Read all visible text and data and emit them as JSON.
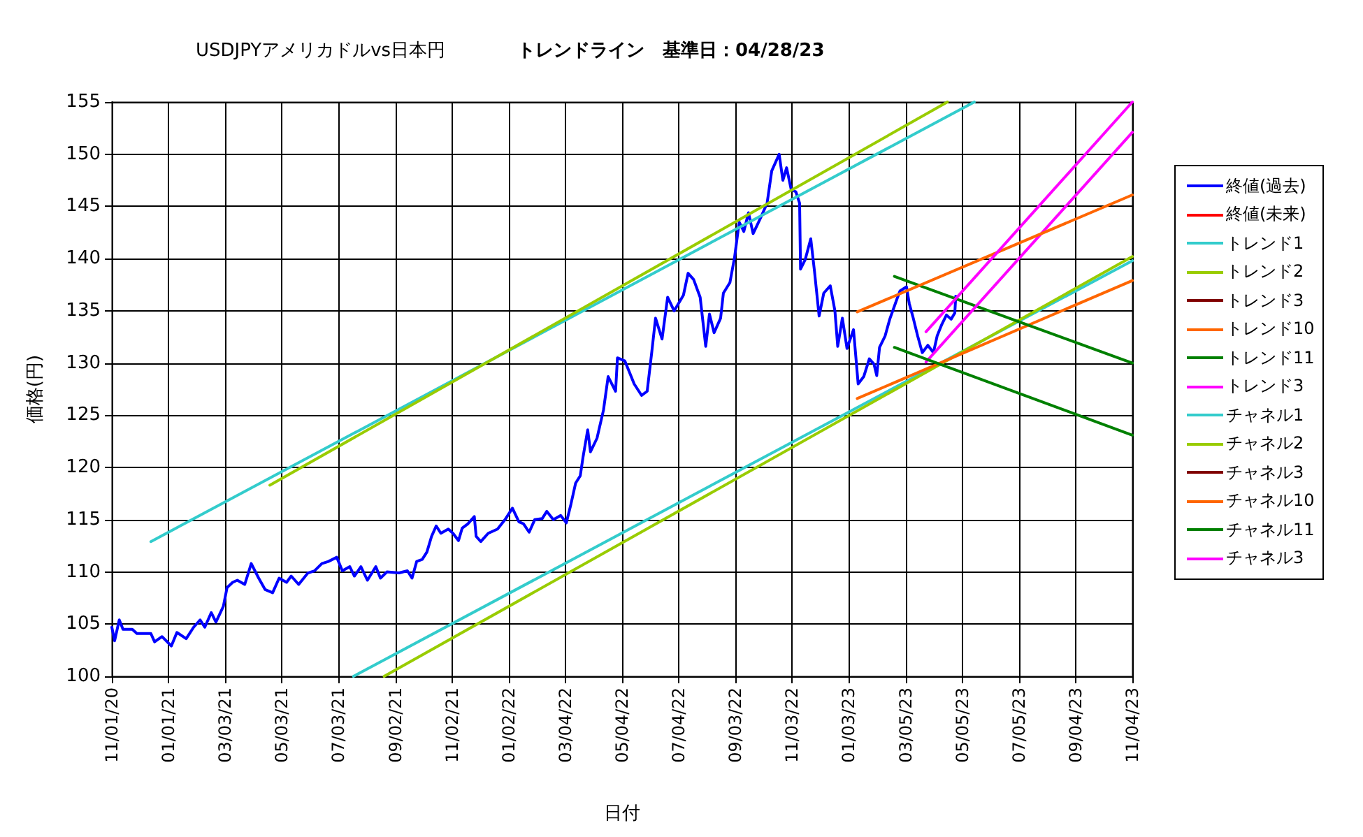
{
  "chart_data": {
    "type": "line",
    "title": "USDJPYアメリカドルvs日本円",
    "subtitle": "トレンドライン　基準日：04/28/23",
    "xlabel": "日付",
    "ylabel": "価格(円)",
    "xlim": [
      "2020-11-01",
      "2023-11-04"
    ],
    "xticks": [
      {
        "value": "2020-11-01",
        "label": "11/01/20"
      },
      {
        "value": "2021-01-01",
        "label": "01/01/21"
      },
      {
        "value": "2021-03-03",
        "label": "03/03/21"
      },
      {
        "value": "2021-05-03",
        "label": "05/03/21"
      },
      {
        "value": "2021-07-03",
        "label": "07/03/21"
      },
      {
        "value": "2021-09-02",
        "label": "09/02/21"
      },
      {
        "value": "2021-11-02",
        "label": "11/02/21"
      },
      {
        "value": "2022-01-02",
        "label": "01/02/22"
      },
      {
        "value": "2022-03-04",
        "label": "03/04/22"
      },
      {
        "value": "2022-05-04",
        "label": "05/04/22"
      },
      {
        "value": "2022-07-04",
        "label": "07/04/22"
      },
      {
        "value": "2022-09-03",
        "label": "09/03/22"
      },
      {
        "value": "2022-11-03",
        "label": "11/03/22"
      },
      {
        "value": "2023-01-03",
        "label": "01/03/23"
      },
      {
        "value": "2023-03-05",
        "label": "03/05/23"
      },
      {
        "value": "2023-05-05",
        "label": "05/05/23"
      },
      {
        "value": "2023-07-05",
        "label": "07/05/23"
      },
      {
        "value": "2023-09-04",
        "label": "09/04/23"
      },
      {
        "value": "2023-11-04",
        "label": "11/04/23"
      }
    ],
    "ylim": [
      100,
      155
    ],
    "yticks": [
      100,
      105,
      110,
      115,
      120,
      125,
      130,
      135,
      140,
      145,
      150,
      155
    ],
    "grid": true,
    "legend": "right",
    "marker": "none",
    "line_style": "solid",
    "series": [
      {
        "name": "終値(過去)",
        "color": "#0000ff",
        "x": [
          "2020-11-01",
          "2020-11-04",
          "2020-11-09",
          "2020-11-13",
          "2020-11-23",
          "2020-11-28",
          "2020-12-13",
          "2020-12-17",
          "2020-12-25",
          "2021-01-04",
          "2021-01-10",
          "2021-01-20",
          "2021-01-28",
          "2021-02-04",
          "2021-02-09",
          "2021-02-16",
          "2021-02-21",
          "2021-03-01",
          "2021-03-05",
          "2021-03-11",
          "2021-03-16",
          "2021-03-24",
          "2021-03-31",
          "2021-04-08",
          "2021-04-15",
          "2021-04-23",
          "2021-04-30",
          "2021-05-08",
          "2021-05-13",
          "2021-05-21",
          "2021-05-31",
          "2021-06-07",
          "2021-06-15",
          "2021-06-22",
          "2021-07-01",
          "2021-07-07",
          "2021-07-15",
          "2021-07-20",
          "2021-07-27",
          "2021-08-03",
          "2021-08-12",
          "2021-08-17",
          "2021-08-24",
          "2021-09-06",
          "2021-09-15",
          "2021-09-20",
          "2021-09-25",
          "2021-10-01",
          "2021-10-06",
          "2021-10-11",
          "2021-10-16",
          "2021-10-21",
          "2021-10-29",
          "2021-11-03",
          "2021-11-09",
          "2021-11-13",
          "2021-11-19",
          "2021-11-26",
          "2021-11-28",
          "2021-12-03",
          "2021-12-11",
          "2021-12-21",
          "2021-12-29",
          "2022-01-06",
          "2022-01-13",
          "2022-01-18",
          "2022-01-24",
          "2022-01-30",
          "2022-02-07",
          "2022-02-12",
          "2022-02-19",
          "2022-02-27",
          "2022-03-05",
          "2022-03-10",
          "2022-03-15",
          "2022-03-20",
          "2022-03-23",
          "2022-03-28",
          "2022-03-31",
          "2022-04-07",
          "2022-04-14",
          "2022-04-19",
          "2022-04-27",
          "2022-04-29",
          "2022-05-07",
          "2022-05-12",
          "2022-05-17",
          "2022-05-25",
          "2022-05-31",
          "2022-06-05",
          "2022-06-09",
          "2022-06-16",
          "2022-06-22",
          "2022-06-29",
          "2022-07-09",
          "2022-07-14",
          "2022-07-20",
          "2022-07-27",
          "2022-08-02",
          "2022-08-06",
          "2022-08-11",
          "2022-08-18",
          "2022-08-21",
          "2022-08-28",
          "2022-09-02",
          "2022-09-07",
          "2022-09-12",
          "2022-09-17",
          "2022-09-22",
          "2022-09-30",
          "2022-10-07",
          "2022-10-12",
          "2022-10-20",
          "2022-10-24",
          "2022-10-28",
          "2022-11-02",
          "2022-11-07",
          "2022-11-11",
          "2022-11-12",
          "2022-11-17",
          "2022-11-23",
          "2022-11-27",
          "2022-12-02",
          "2022-12-07",
          "2022-12-14",
          "2022-12-19",
          "2022-12-22",
          "2022-12-27",
          "2023-01-01",
          "2023-01-08",
          "2023-01-13",
          "2023-01-19",
          "2023-01-25",
          "2023-01-30",
          "2023-02-02",
          "2023-02-05",
          "2023-02-11",
          "2023-02-16",
          "2023-02-24",
          "2023-02-27",
          "2023-03-06",
          "2023-03-09",
          "2023-03-13",
          "2023-03-18",
          "2023-03-23",
          "2023-03-29",
          "2023-04-04",
          "2023-04-08",
          "2023-04-13",
          "2023-04-18",
          "2023-04-23",
          "2023-04-27",
          "2023-04-28"
        ],
        "values": [
          104.7,
          103.4,
          105.4,
          104.5,
          104.5,
          104.1,
          104.1,
          103.3,
          103.8,
          102.9,
          104.2,
          103.6,
          104.7,
          105.4,
          104.7,
          106.1,
          105.2,
          106.7,
          108.5,
          109.0,
          109.2,
          108.8,
          110.8,
          109.4,
          108.3,
          108.0,
          109.4,
          109.0,
          109.6,
          108.8,
          109.9,
          110.1,
          110.8,
          111.0,
          111.4,
          110.1,
          110.5,
          109.6,
          110.5,
          109.2,
          110.5,
          109.4,
          110.0,
          109.9,
          110.1,
          109.4,
          111.0,
          111.2,
          111.9,
          113.4,
          114.4,
          113.7,
          114.1,
          113.7,
          113.0,
          114.2,
          114.6,
          115.3,
          113.4,
          112.9,
          113.7,
          114.1,
          115.0,
          116.1,
          114.8,
          114.6,
          113.8,
          115.0,
          115.1,
          115.8,
          115.0,
          115.4,
          114.7,
          116.5,
          118.5,
          119.2,
          121.0,
          123.6,
          121.5,
          122.8,
          125.5,
          128.7,
          127.3,
          130.5,
          130.2,
          129.1,
          128.0,
          126.9,
          127.3,
          131.1,
          134.3,
          132.3,
          136.3,
          135.0,
          136.5,
          138.6,
          138.0,
          136.3,
          131.6,
          134.7,
          132.9,
          134.3,
          136.7,
          137.7,
          140.1,
          143.5,
          142.6,
          144.4,
          142.4,
          143.9,
          145.3,
          148.4,
          150.0,
          147.5,
          148.7,
          146.6,
          146.4,
          145.3,
          139.0,
          139.9,
          141.9,
          138.8,
          134.5,
          136.7,
          137.4,
          135.0,
          131.6,
          134.3,
          131.4,
          133.2,
          128.0,
          128.7,
          130.4,
          129.9,
          128.8,
          131.5,
          132.6,
          134.2,
          136.2,
          136.9,
          137.3,
          135.7,
          134.4,
          132.6,
          131.0,
          131.7,
          131.0,
          132.6,
          133.7,
          134.6,
          134.2,
          134.8,
          136.4
        ]
      },
      {
        "name": "終値(未来)",
        "color": "#ff0000"
      },
      {
        "name": "トレンド1",
        "color": "#33cccc",
        "x": [
          "2021-07-19",
          "2023-11-04"
        ],
        "values": [
          100,
          139.8
        ]
      },
      {
        "name": "トレンド2",
        "color": "#99cc00",
        "x": [
          "2021-08-21",
          "2023-11-04"
        ],
        "values": [
          100,
          140.2
        ]
      },
      {
        "name": "トレンド3",
        "color": "#800000"
      },
      {
        "name": "トレンド10",
        "color": "#ff6600",
        "x": [
          "2023-01-12",
          "2023-11-04"
        ],
        "values": [
          126.6,
          137.9
        ]
      },
      {
        "name": "トレンド11",
        "color": "#008000",
        "x": [
          "2023-02-21",
          "2023-11-04"
        ],
        "values": [
          138.3,
          130.0
        ]
      },
      {
        "name": "トレンド3",
        "color": "#ff00ff",
        "x": [
          "2023-03-27",
          "2023-11-04"
        ],
        "values": [
          130.1,
          152.1
        ]
      },
      {
        "name": "チャネル1",
        "color": "#33cccc",
        "x": [
          "2020-12-13",
          "2023-05-18"
        ],
        "values": [
          112.9,
          155
        ]
      },
      {
        "name": "チャネル2",
        "color": "#99cc00",
        "x": [
          "2021-04-20",
          "2023-04-19"
        ],
        "values": [
          118.3,
          155
        ]
      },
      {
        "name": "チャネル3",
        "color": "#800000"
      },
      {
        "name": "チャネル10",
        "color": "#ff6600",
        "x": [
          "2023-01-12",
          "2023-11-04"
        ],
        "values": [
          134.9,
          146.1
        ]
      },
      {
        "name": "チャネル11",
        "color": "#008000",
        "x": [
          "2023-02-21",
          "2023-11-04"
        ],
        "values": [
          131.5,
          123.1
        ]
      },
      {
        "name": "チャネル3",
        "color": "#ff00ff",
        "x": [
          "2023-03-27",
          "2023-11-04"
        ],
        "values": [
          133.0,
          155.0
        ]
      }
    ]
  }
}
